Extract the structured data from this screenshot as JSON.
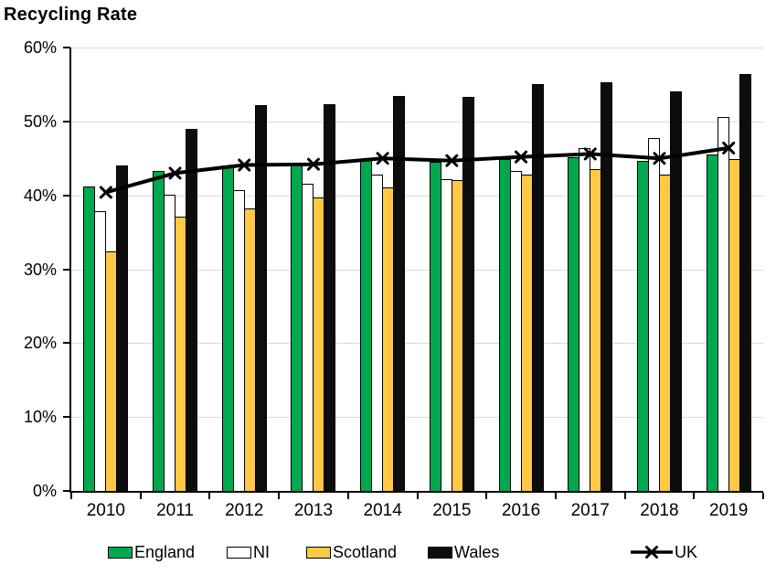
{
  "chart_data": {
    "type": "bar",
    "title": "Recycling Rate",
    "xlabel": "",
    "ylabel": "",
    "categories": [
      "2010",
      "2011",
      "2012",
      "2013",
      "2014",
      "2015",
      "2016",
      "2017",
      "2018",
      "2019"
    ],
    "series": [
      {
        "name": "England",
        "type": "bar",
        "color": "#00A94F",
        "values": [
          41.2,
          43.3,
          44.1,
          44.2,
          44.8,
          44.5,
          44.9,
          45.2,
          44.7,
          45.5
        ]
      },
      {
        "name": "NI",
        "type": "bar",
        "color": "#FFFFFF",
        "values": [
          37.9,
          40.1,
          40.7,
          41.6,
          42.8,
          42.2,
          43.3,
          46.4,
          47.8,
          50.6
        ]
      },
      {
        "name": "Scotland",
        "type": "bar",
        "color": "#FFC845",
        "values": [
          32.4,
          37.1,
          38.2,
          39.7,
          41.1,
          42.1,
          42.8,
          43.5,
          42.8,
          44.9
        ]
      },
      {
        "name": "Wales",
        "type": "bar",
        "color": "#0D0D0D",
        "values": [
          44.0,
          49.0,
          52.2,
          52.3,
          53.4,
          53.3,
          55.0,
          55.3,
          54.1,
          56.4
        ]
      },
      {
        "name": "UK",
        "type": "line",
        "color": "#000000",
        "marker": "x",
        "values": [
          40.4,
          43.0,
          44.1,
          44.2,
          45.0,
          44.7,
          45.2,
          45.6,
          45.0,
          46.4
        ]
      }
    ],
    "ylim": [
      0,
      60
    ],
    "yticks": [
      0,
      10,
      20,
      30,
      40,
      50,
      60
    ],
    "ytick_labels": [
      "0%",
      "10%",
      "20%",
      "30%",
      "40%",
      "50%",
      "60%"
    ],
    "grid": true,
    "legend_position": "bottom",
    "colors": {
      "gridline": "#D9D9D9",
      "axis": "#000000",
      "bar_border": "#000000",
      "text": "#000000",
      "background": "#FFFFFF"
    }
  }
}
